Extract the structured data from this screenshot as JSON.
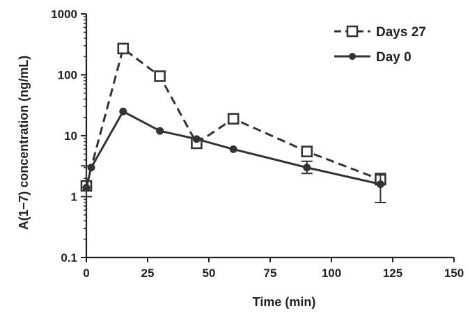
{
  "chart_data": {
    "type": "line",
    "title": "",
    "xlabel": "Time (min)",
    "ylabel": "A(1−7) concentration (ng/mL)",
    "xlim": [
      0,
      150
    ],
    "ylim": [
      0.1,
      1000
    ],
    "yscale": "log",
    "grid": false,
    "legend_position": "top-right",
    "x_ticks": [
      0,
      25,
      50,
      75,
      100,
      125,
      150
    ],
    "x_tick_labels": [
      "0",
      "25",
      "50",
      "75",
      "100",
      "125",
      "150"
    ],
    "y_ticks": [
      0.1,
      1,
      10,
      100,
      1000
    ],
    "y_tick_labels": [
      "0.1",
      "1",
      "10",
      "100",
      "1000"
    ],
    "series": [
      {
        "name": "Days 27",
        "style": "dashed",
        "marker": "open-square",
        "color": "#333333",
        "x": [
          0,
          15,
          30,
          45,
          60,
          90,
          120
        ],
        "y": [
          1.5,
          270,
          95,
          7.5,
          19,
          5.5,
          1.9
        ],
        "error_high": [
          null,
          null,
          null,
          null,
          null,
          null,
          null
        ],
        "error_low": [
          null,
          null,
          null,
          null,
          null,
          null,
          null
        ]
      },
      {
        "name": "Day 0",
        "style": "solid",
        "marker": "filled-circle",
        "color": "#333333",
        "x": [
          0,
          2,
          15,
          30,
          45,
          60,
          90,
          120
        ],
        "y": [
          1.4,
          3.0,
          25,
          12,
          8.8,
          6.0,
          3.0,
          1.6
        ],
        "error_high": [
          3.2,
          null,
          null,
          null,
          null,
          null,
          3.8,
          2.4
        ],
        "error_low": [
          1.0,
          null,
          null,
          null,
          null,
          null,
          2.4,
          0.8
        ]
      }
    ]
  }
}
